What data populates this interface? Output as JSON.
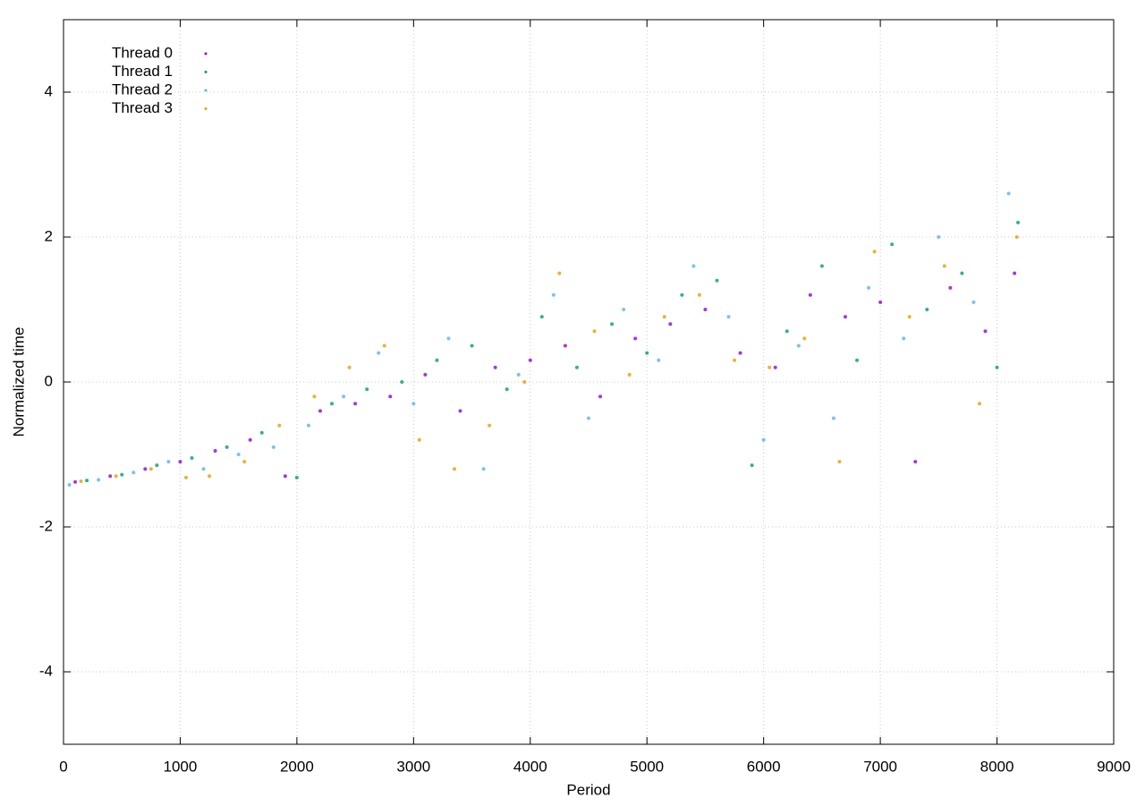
{
  "chart_data": {
    "type": "scatter",
    "x_label": "Period",
    "y_label": "Normalized time",
    "xlim": [
      0,
      9000
    ],
    "xticks": [
      0,
      1000,
      2000,
      3000,
      4000,
      5000,
      6000,
      7000,
      8000,
      9000
    ],
    "ylim": [
      -5,
      5
    ],
    "yticks": [
      -4,
      -2,
      0,
      2,
      4
    ],
    "grid": true,
    "legend": "upper left",
    "series": [
      {
        "name": "Thread 0",
        "color": "#9400d3",
        "x": [
          100,
          400,
          700,
          1000,
          1300,
          1600,
          1900,
          2200,
          2500,
          2800,
          3100,
          3400,
          3700,
          4000,
          4300,
          4600,
          4900,
          5200,
          5500,
          5800,
          6100,
          6400,
          6700,
          7000,
          7300,
          7600,
          7900,
          8150
        ],
        "values": [
          -1.38,
          -1.3,
          -1.2,
          -1.1,
          -0.95,
          -0.8,
          -1.3,
          -0.4,
          -0.3,
          -0.2,
          0.1,
          -0.4,
          0.2,
          0.3,
          0.5,
          -0.2,
          0.6,
          0.8,
          1.0,
          0.4,
          0.2,
          1.2,
          0.9,
          1.1,
          -1.1,
          1.3,
          0.7,
          1.5
        ]
      },
      {
        "name": "Thread 1",
        "color": "#009e73",
        "x": [
          200,
          500,
          800,
          1100,
          1400,
          1700,
          2000,
          2300,
          2600,
          2900,
          3200,
          3500,
          3800,
          4100,
          4400,
          4700,
          5000,
          5300,
          5600,
          5900,
          6200,
          6500,
          6800,
          7100,
          7400,
          7700,
          8000,
          8180
        ],
        "values": [
          -1.36,
          -1.28,
          -1.15,
          -1.05,
          -0.9,
          -0.7,
          -1.32,
          -0.3,
          -0.1,
          0.0,
          0.3,
          0.5,
          -0.1,
          0.9,
          0.2,
          0.8,
          0.4,
          1.2,
          1.4,
          -1.15,
          0.7,
          1.6,
          0.3,
          1.9,
          1.0,
          1.5,
          0.2,
          2.2
        ]
      },
      {
        "name": "Thread 2",
        "color": "#56b4e9",
        "x": [
          50,
          300,
          600,
          900,
          1200,
          1500,
          1800,
          2100,
          2400,
          2700,
          3000,
          3300,
          3600,
          3900,
          4200,
          4500,
          4800,
          5100,
          5400,
          5700,
          6000,
          6300,
          6600,
          6900,
          7200,
          7500,
          7800,
          8100
        ],
        "values": [
          -1.42,
          -1.35,
          -1.25,
          -1.1,
          -1.2,
          -1.0,
          -0.9,
          -0.6,
          -0.2,
          0.4,
          -0.3,
          0.6,
          -1.2,
          0.1,
          1.2,
          -0.5,
          1.0,
          0.3,
          1.6,
          0.9,
          -0.8,
          0.5,
          -0.5,
          1.3,
          0.6,
          2.0,
          1.1,
          2.6
        ]
      },
      {
        "name": "Thread 3",
        "color": "#e69f00",
        "x": [
          150,
          450,
          750,
          1050,
          1250,
          1550,
          1850,
          2150,
          2450,
          2750,
          3050,
          3350,
          3650,
          3950,
          4250,
          4550,
          4850,
          5150,
          5450,
          5750,
          6050,
          6350,
          6650,
          6950,
          7250,
          7550,
          7850,
          8170
        ],
        "values": [
          -1.37,
          -1.3,
          -1.2,
          -1.32,
          -1.3,
          -1.1,
          -0.6,
          -0.2,
          0.2,
          0.5,
          -0.8,
          -1.2,
          -0.6,
          0.0,
          1.5,
          0.7,
          0.1,
          0.9,
          1.2,
          0.3,
          0.2,
          0.6,
          -1.1,
          1.8,
          0.9,
          1.6,
          -0.3,
          2.0
        ]
      }
    ]
  }
}
